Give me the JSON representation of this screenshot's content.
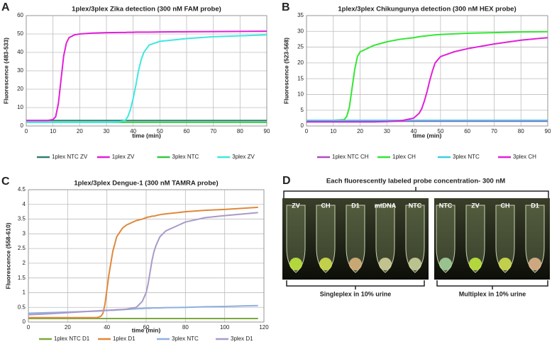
{
  "chart_data": [
    {
      "type": "line",
      "panel_label": "A",
      "title": "1plex/3plex Zika detection (300 nM FAM probe)",
      "x_label": "time (min)",
      "y_label": "Fluorescence (483-533)",
      "x": [
        0,
        5,
        8,
        10,
        11,
        12,
        13,
        14,
        15,
        16,
        18,
        20,
        25,
        30,
        35,
        37,
        38,
        39,
        40,
        41,
        42,
        43,
        44,
        46,
        50,
        60,
        70,
        80,
        90
      ],
      "xlim": [
        0,
        90
      ],
      "xticks": [
        0,
        10,
        20,
        30,
        40,
        50,
        60,
        70,
        80,
        90
      ],
      "ylim": [
        0,
        60
      ],
      "yticks": [
        0,
        10,
        20,
        30,
        40,
        50,
        60
      ],
      "grid": true,
      "series": [
        {
          "name": "1plex NTC ZV",
          "color": "#2f7f72",
          "values": [
            3,
            3,
            3,
            3,
            3,
            3,
            3,
            3,
            3,
            3,
            3,
            3,
            3,
            3,
            3,
            3,
            3,
            3,
            3,
            3,
            3,
            3,
            3,
            3,
            3,
            3,
            3,
            3,
            3
          ]
        },
        {
          "name": "1plex ZV",
          "color": "#e020d8",
          "values": [
            3,
            3,
            3,
            3.5,
            5,
            12,
            25,
            38,
            45,
            48,
            49.5,
            50,
            50.5,
            50.7,
            50.8,
            50.8,
            50.9,
            50.9,
            50.9,
            51,
            51,
            51,
            51,
            51,
            51.1,
            51.2,
            51.3,
            51.4,
            51.5
          ]
        },
        {
          "name": "3plex NTC",
          "color": "#2ecc40",
          "values": [
            2,
            2,
            2,
            2,
            2,
            2,
            2,
            2,
            2,
            2,
            2,
            2,
            2,
            2,
            2,
            2,
            2,
            2,
            2,
            2,
            2,
            2,
            2,
            2,
            2,
            2,
            2,
            2,
            2
          ]
        },
        {
          "name": "3plex ZV",
          "color": "#3ee8e0",
          "values": [
            2,
            2,
            2,
            2,
            2,
            2,
            2,
            2,
            2,
            2,
            2,
            2,
            2,
            2,
            2.3,
            3,
            5,
            9,
            15,
            22,
            30,
            36,
            40,
            44,
            46,
            47.5,
            48.5,
            49,
            49.5
          ]
        }
      ]
    },
    {
      "type": "line",
      "panel_label": "B",
      "title": "1plex/3plex Chikungunya detection (300 nM HEX probe)",
      "x_label": "time (min)",
      "y_label": "Fluorescence (523-568)",
      "x": [
        0,
        5,
        10,
        14,
        15,
        16,
        17,
        18,
        19,
        20,
        25,
        30,
        35,
        40,
        42,
        43,
        44,
        45,
        46,
        47,
        48,
        50,
        55,
        60,
        70,
        80,
        90
      ],
      "xlim": [
        0,
        90
      ],
      "xticks": [
        0,
        10,
        20,
        30,
        40,
        50,
        60,
        70,
        80,
        90
      ],
      "ylim": [
        0,
        35
      ],
      "yticks": [
        0,
        5,
        10,
        15,
        20,
        25,
        30,
        35
      ],
      "grid": true,
      "series": [
        {
          "name": "1plex NTC CH",
          "color": "#b04cc0",
          "values": [
            1.5,
            1.5,
            1.5,
            1.5,
            1.5,
            1.5,
            1.5,
            1.5,
            1.5,
            1.5,
            1.5,
            1.5,
            1.5,
            1.5,
            1.5,
            1.5,
            1.5,
            1.5,
            1.5,
            1.5,
            1.5,
            1.5,
            1.5,
            1.5,
            1.5,
            1.5,
            1.5
          ]
        },
        {
          "name": "1plex CH",
          "color": "#33e633",
          "values": [
            1.8,
            1.8,
            1.8,
            2,
            3,
            6,
            12,
            18,
            22,
            23.5,
            25.5,
            26.7,
            27.5,
            28,
            28.3,
            28.4,
            28.5,
            28.6,
            28.7,
            28.8,
            28.9,
            29,
            29.2,
            29.4,
            29.6,
            29.8,
            29.9
          ]
        },
        {
          "name": "3plex NTC",
          "color": "#3ecfe0",
          "values": [
            1.8,
            1.8,
            1.8,
            1.8,
            1.8,
            1.8,
            1.8,
            1.8,
            1.8,
            1.8,
            1.8,
            1.8,
            1.8,
            1.8,
            1.8,
            1.8,
            1.8,
            1.8,
            1.8,
            1.8,
            1.8,
            1.8,
            1.8,
            1.8,
            1.8,
            1.8,
            1.8
          ]
        },
        {
          "name": "3plex CH",
          "color": "#e020d8",
          "values": [
            1.3,
            1.3,
            1.3,
            1.3,
            1.3,
            1.3,
            1.3,
            1.3,
            1.3,
            1.3,
            1.3,
            1.4,
            1.6,
            2.5,
            4,
            5.5,
            8,
            11,
            14.5,
            17.5,
            20,
            22,
            23.5,
            24.5,
            26,
            27.2,
            28
          ]
        }
      ]
    },
    {
      "type": "line",
      "panel_label": "C",
      "title": "1plex/3plex Dengue-1 (300 nM TAMRA probe)",
      "x_label": "time (min)",
      "y_label": "Fluorescence (558-610)",
      "x": [
        0,
        10,
        20,
        30,
        35,
        37,
        38,
        39,
        40,
        41,
        42,
        43,
        45,
        48,
        50,
        55,
        58,
        60,
        61,
        62,
        63,
        64,
        65,
        67,
        70,
        80,
        90,
        100,
        110,
        117
      ],
      "xlim": [
        0,
        120
      ],
      "xticks": [
        0,
        20,
        40,
        60,
        80,
        100,
        120
      ],
      "ylim": [
        0,
        4.5
      ],
      "yticks": [
        0,
        0.5,
        1,
        1.5,
        2,
        2.5,
        3,
        3.5,
        4,
        4.5
      ],
      "grid": true,
      "series": [
        {
          "name": "1plex NTC D1",
          "color": "#7aab3a",
          "values": [
            0.12,
            0.12,
            0.12,
            0.12,
            0.12,
            0.12,
            0.12,
            0.12,
            0.12,
            0.12,
            0.12,
            0.12,
            0.12,
            0.12,
            0.12,
            0.12,
            0.12,
            0.12,
            0.12,
            0.12,
            0.12,
            0.12,
            0.12,
            0.12,
            0.12,
            0.12,
            0.12,
            0.12,
            0.12,
            0.12
          ]
        },
        {
          "name": "1plex D1",
          "color": "#e0883a",
          "values": [
            0.15,
            0.15,
            0.15,
            0.15,
            0.15,
            0.2,
            0.3,
            0.6,
            1.1,
            1.6,
            2,
            2.4,
            2.9,
            3.2,
            3.3,
            3.45,
            3.5,
            3.55,
            3.57,
            3.58,
            3.6,
            3.6,
            3.62,
            3.65,
            3.68,
            3.75,
            3.8,
            3.83,
            3.87,
            3.9
          ]
        },
        {
          "name": "3plex NTC",
          "color": "#8fb0e0",
          "values": [
            0.3,
            0.32,
            0.34,
            0.36,
            0.37,
            0.38,
            0.38,
            0.39,
            0.39,
            0.4,
            0.4,
            0.4,
            0.41,
            0.42,
            0.43,
            0.45,
            0.46,
            0.47,
            0.47,
            0.47,
            0.48,
            0.48,
            0.48,
            0.48,
            0.49,
            0.5,
            0.52,
            0.53,
            0.55,
            0.56
          ]
        },
        {
          "name": "3plex D1",
          "color": "#a99ac9",
          "values": [
            0.25,
            0.28,
            0.32,
            0.36,
            0.38,
            0.39,
            0.39,
            0.4,
            0.4,
            0.4,
            0.41,
            0.41,
            0.42,
            0.43,
            0.44,
            0.5,
            0.7,
            1,
            1.3,
            1.7,
            2.1,
            2.4,
            2.6,
            2.9,
            3.1,
            3.4,
            3.55,
            3.62,
            3.68,
            3.72
          ]
        }
      ]
    }
  ],
  "photo_panel": {
    "panel_label": "D",
    "title": "Each fluorescently labeled probe concentration- 300 nM",
    "left_tubes": [
      "ZV",
      "CH",
      "D1",
      "mtDNA",
      "NTC"
    ],
    "right_tubes": [
      "NTC",
      "ZV",
      "CH",
      "D1"
    ],
    "left_caption": "Singleplex in 10% urine",
    "right_caption": "Multiplex in 10% urine"
  }
}
